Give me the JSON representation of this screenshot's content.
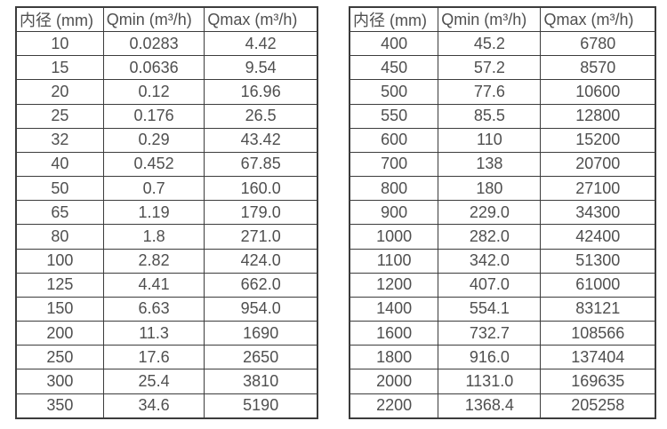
{
  "page": {
    "background": "#ffffff",
    "text_color": "#4f4f4f",
    "border_color": "#3c3c3c"
  },
  "tables": [
    {
      "id": "spec-table-small-diameters",
      "headers": [
        "内径 (mm)",
        "Qmin (m³/h)",
        "Qmax (m³/h)"
      ],
      "rows": [
        [
          "10",
          "0.0283",
          "4.42"
        ],
        [
          "15",
          "0.0636",
          "9.54"
        ],
        [
          "20",
          "0.12",
          "16.96"
        ],
        [
          "25",
          "0.176",
          "26.5"
        ],
        [
          "32",
          "0.29",
          "43.42"
        ],
        [
          "40",
          "0.452",
          "67.85"
        ],
        [
          "50",
          "0.7",
          "160.0"
        ],
        [
          "65",
          "1.19",
          "179.0"
        ],
        [
          "80",
          "1.8",
          "271.0"
        ],
        [
          "100",
          "2.82",
          "424.0"
        ],
        [
          "125",
          "4.41",
          "662.0"
        ],
        [
          "150",
          "6.63",
          "954.0"
        ],
        [
          "200",
          "11.3",
          "1690"
        ],
        [
          "250",
          "17.6",
          "2650"
        ],
        [
          "300",
          "25.4",
          "3810"
        ],
        [
          "350",
          "34.6",
          "5190"
        ]
      ]
    },
    {
      "id": "spec-table-large-diameters",
      "headers": [
        "内径 (mm)",
        "Qmin (m³/h)",
        "Qmax (m³/h)"
      ],
      "rows": [
        [
          "400",
          "45.2",
          "6780"
        ],
        [
          "450",
          "57.2",
          "8570"
        ],
        [
          "500",
          "77.6",
          "10600"
        ],
        [
          "550",
          "85.5",
          "12800"
        ],
        [
          "600",
          "110",
          "15200"
        ],
        [
          "700",
          "138",
          "20700"
        ],
        [
          "800",
          "180",
          "27100"
        ],
        [
          "900",
          "229.0",
          "34300"
        ],
        [
          "1000",
          "282.0",
          "42400"
        ],
        [
          "1100",
          "342.0",
          "51300"
        ],
        [
          "1200",
          "407.0",
          "61000"
        ],
        [
          "1400",
          "554.1",
          "83121"
        ],
        [
          "1600",
          "732.7",
          "108566"
        ],
        [
          "1800",
          "916.0",
          "137404"
        ],
        [
          "2000",
          "1131.0",
          "169635"
        ],
        [
          "2200",
          "1368.4",
          "205258"
        ]
      ]
    }
  ]
}
